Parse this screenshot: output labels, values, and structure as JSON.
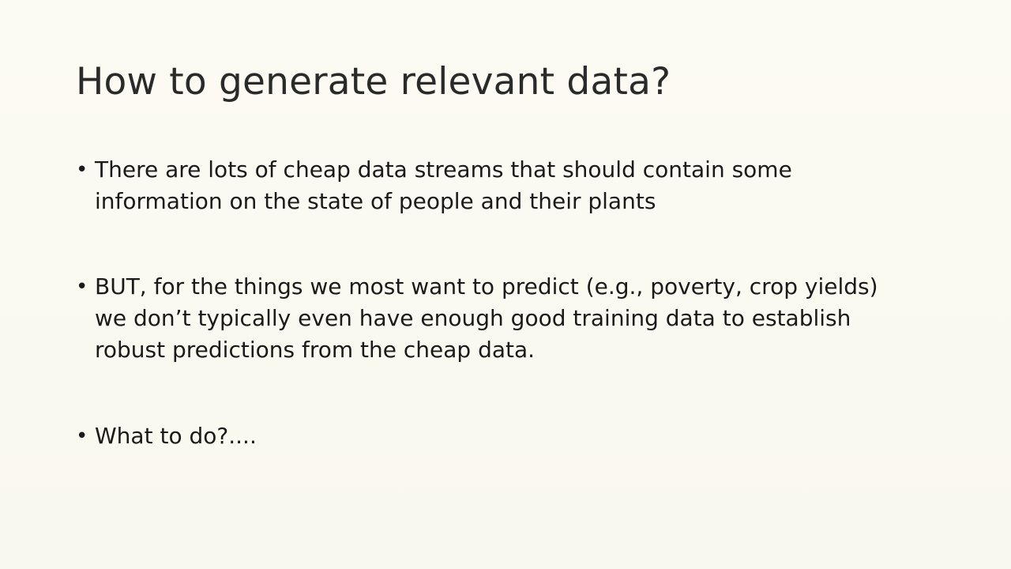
{
  "slide": {
    "title": "How to generate relevant data?",
    "bullets": [
      {
        "marker": "•",
        "lines": [
          "There are lots of cheap data streams that should contain some",
          "information on the state of people and their plants"
        ]
      },
      {
        "marker": "•",
        "lines": [
          "BUT, for the things we most want to predict (e.g., poverty, crop yields)",
          "we don’t typically even have enough good training data to establish",
          "robust predictions from the cheap data."
        ]
      },
      {
        "marker": "•",
        "lines": [
          "What to do?...."
        ]
      }
    ]
  }
}
